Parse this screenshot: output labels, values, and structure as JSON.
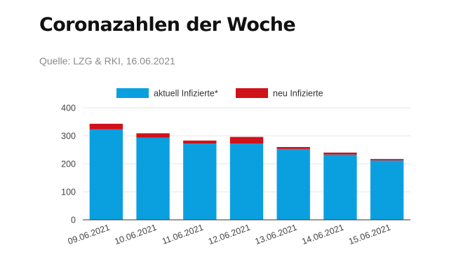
{
  "header": {
    "title": "Coronazahlen der Woche",
    "source": "Quelle: LZG & RKI, 16.06.2021"
  },
  "chart_data": {
    "type": "bar",
    "stacked": true,
    "title": "",
    "xlabel": "",
    "ylabel": "",
    "categories": [
      "09.06.2021",
      "10.06.2021",
      "11.06.2021",
      "12.06.2021",
      "13.06.2021",
      "14.06.2021",
      "15.06.2021"
    ],
    "series": [
      {
        "name": "aktuell Infizierte*",
        "color": "#0aa0e0",
        "values": [
          323,
          293,
          272,
          272,
          253,
          233,
          212
        ]
      },
      {
        "name": "neu Infizierte",
        "color": "#d0121a",
        "values": [
          20,
          16,
          11,
          24,
          7,
          7,
          5
        ]
      }
    ],
    "ylim": [
      0,
      400
    ],
    "yticks": [
      0,
      100,
      200,
      300,
      400
    ],
    "grid": true,
    "legend_position": "top"
  }
}
